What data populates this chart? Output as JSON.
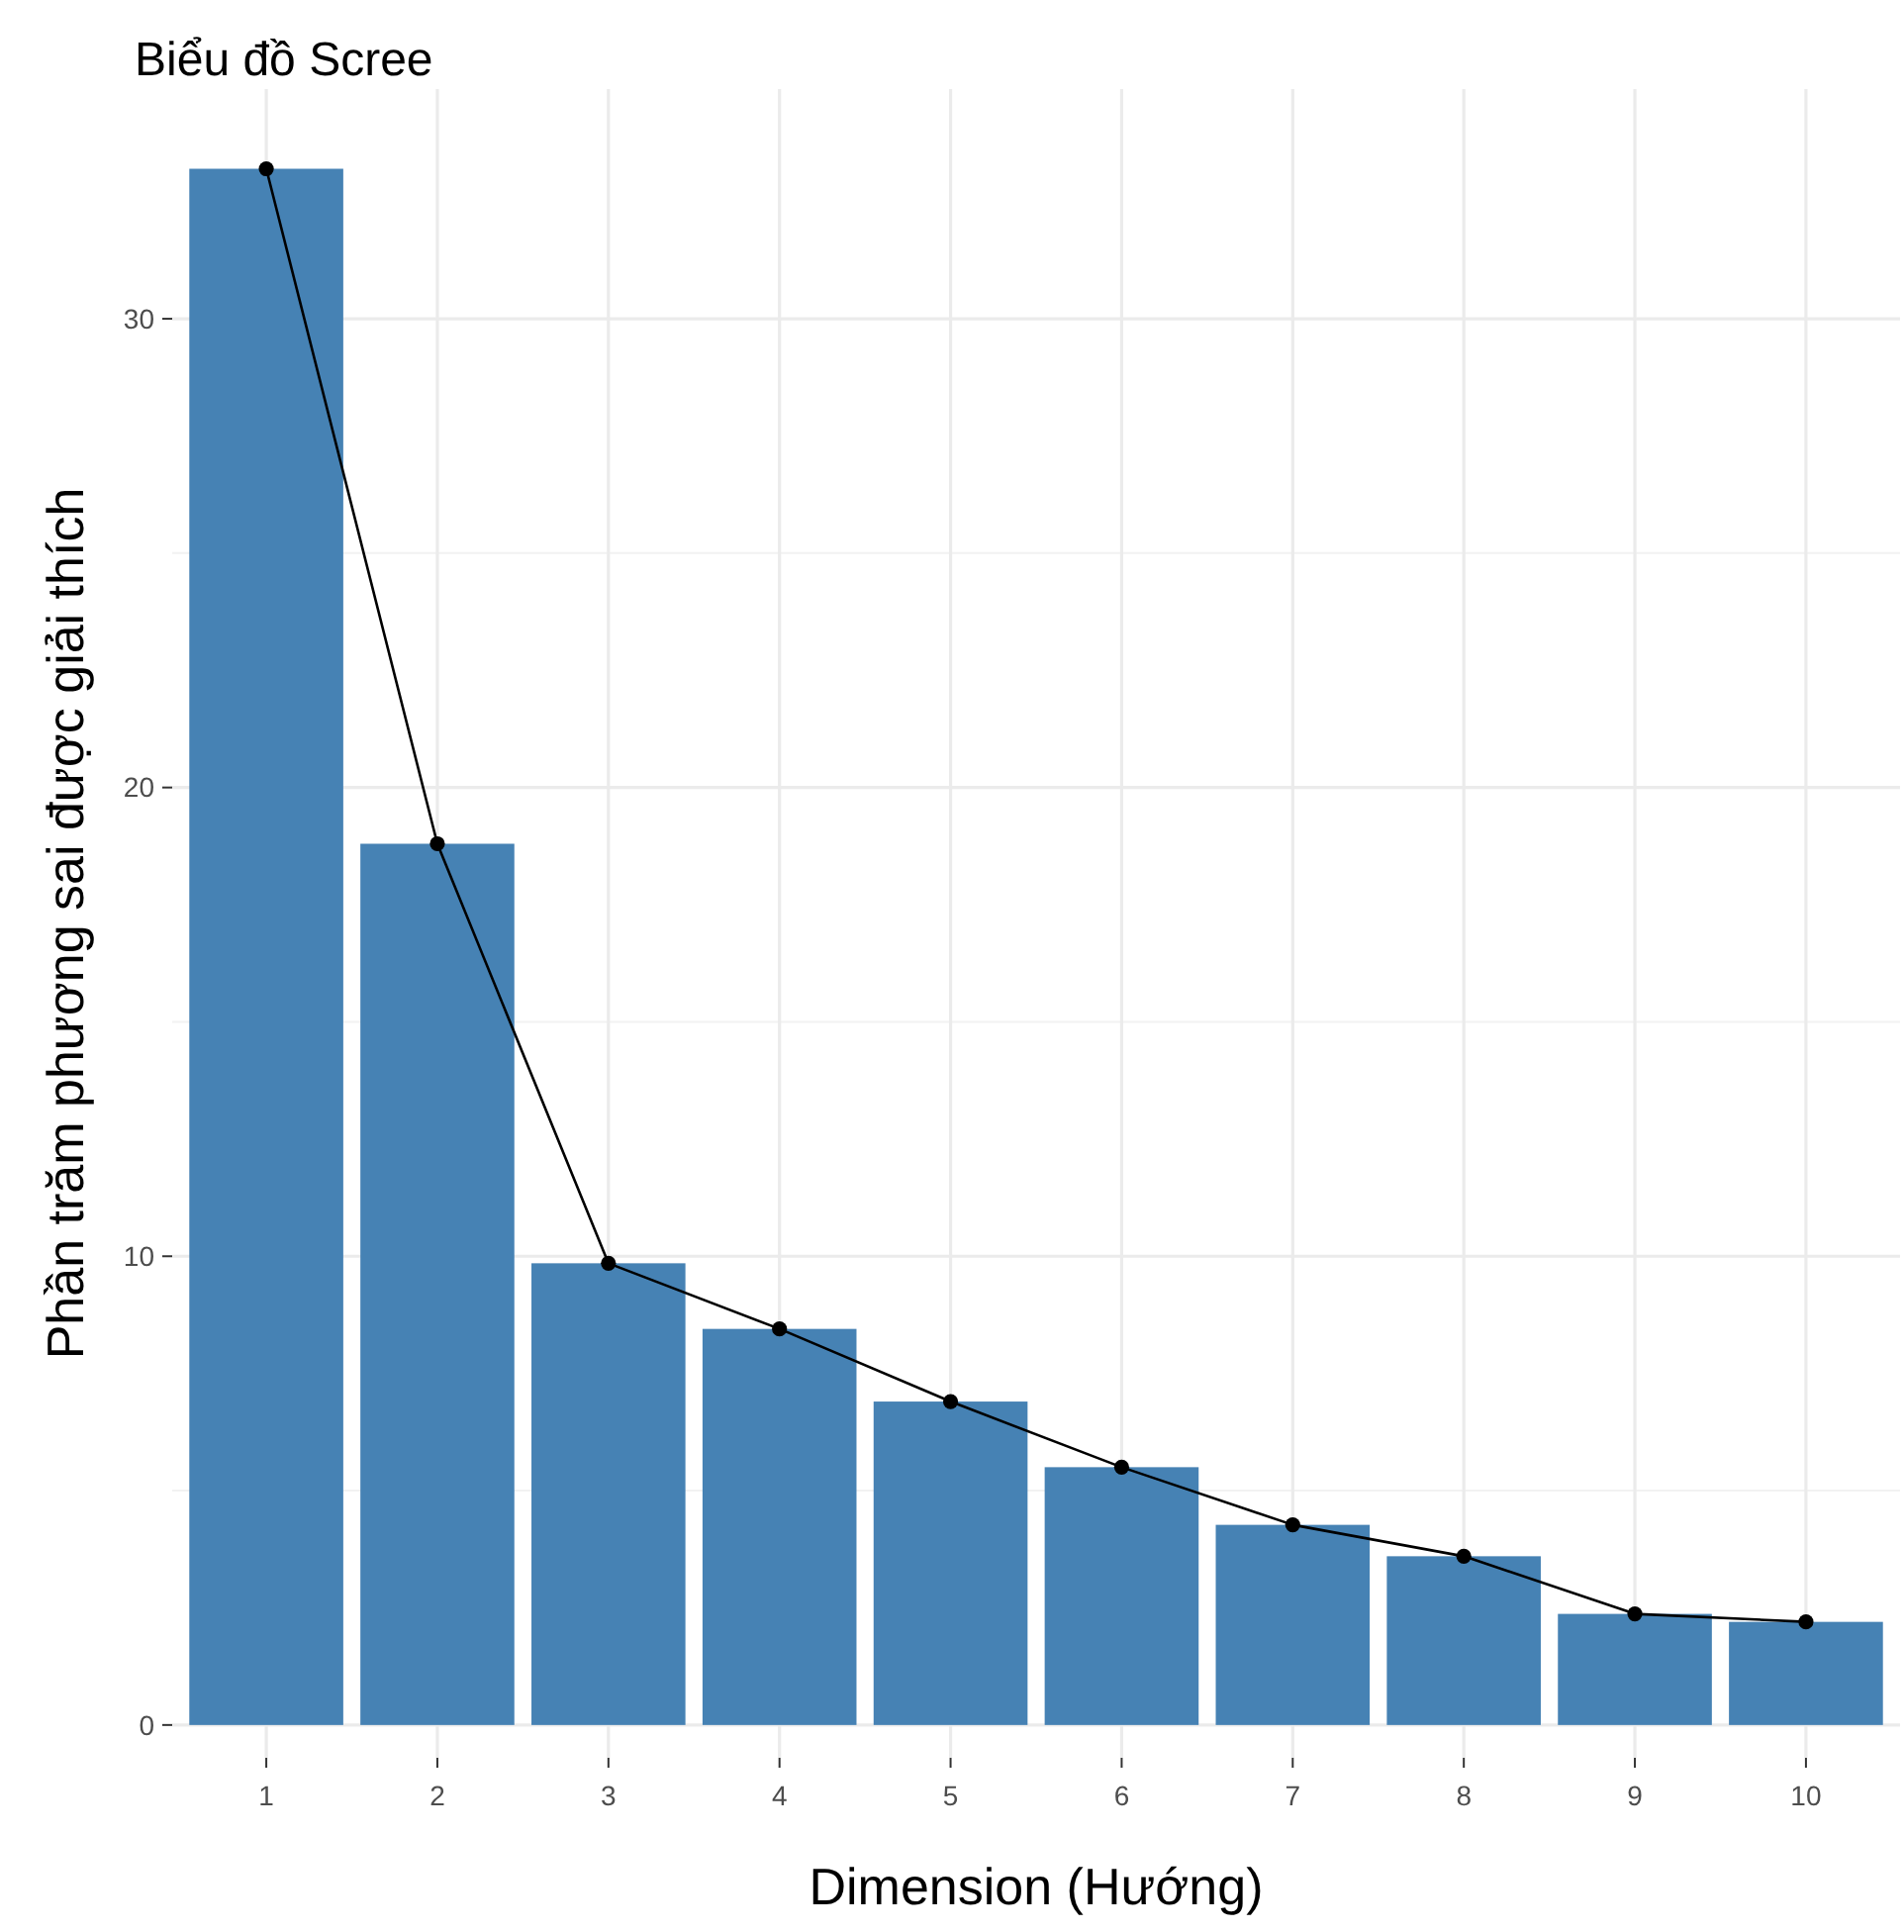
{
  "chart_data": {
    "type": "bar",
    "title": "Biểu đồ Scree",
    "xlabel": "Dimension (Hướng)",
    "ylabel": "Phần trăm phương sai được giải thích",
    "categories": [
      "1",
      "2",
      "3",
      "4",
      "5",
      "6",
      "7",
      "8",
      "9",
      "10"
    ],
    "series": [
      {
        "color": "#4682b4",
        "values": [
          33.2,
          18.8,
          9.85,
          8.45,
          6.9,
          5.5,
          4.27,
          3.6,
          2.37,
          2.2
        ]
      },
      {
        "type": "line",
        "color": "#000000",
        "values": [
          33.2,
          18.8,
          9.85,
          8.45,
          6.9,
          5.5,
          4.27,
          3.6,
          2.37,
          2.2
        ]
      }
    ],
    "marker": "circle",
    "line_style": "solid",
    "ylim": [
      -0.7,
      34.9
    ],
    "yticks": [
      0,
      {
        "value": 5,
        "label": null
      },
      10,
      {
        "value": 15,
        "label": null
      },
      20,
      {
        "value": 25,
        "label": null
      },
      30
    ],
    "grid": true
  }
}
